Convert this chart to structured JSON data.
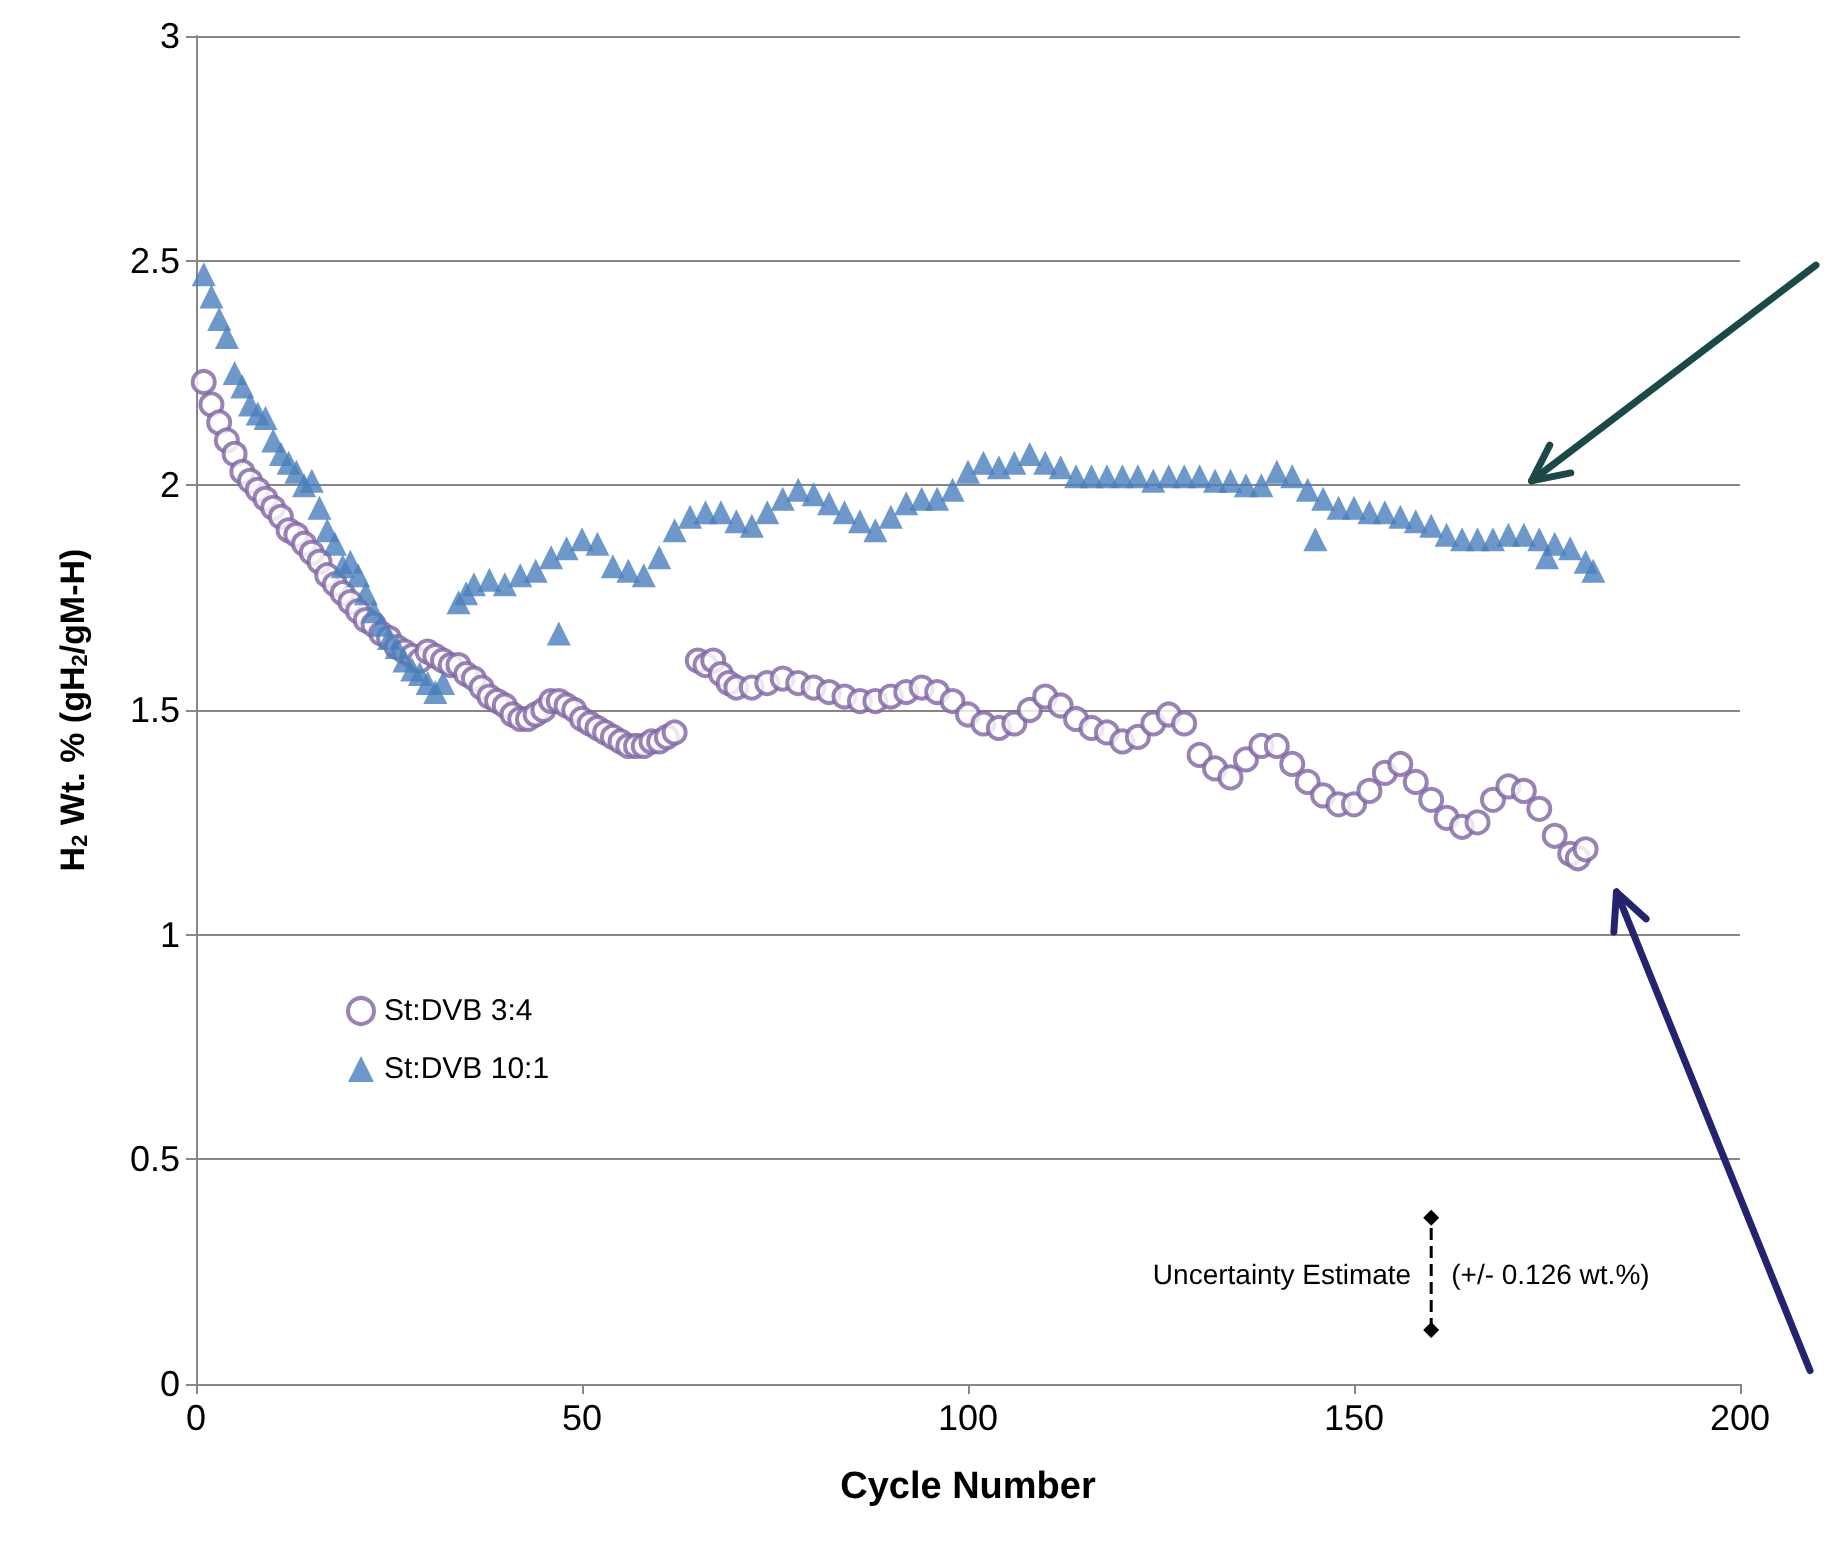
{
  "chart_data": {
    "type": "scatter",
    "xlabel": "Cycle Number",
    "ylabel": "H$_{2}$ Wt. % (gH$_{2}$/gM-H)",
    "xlim": [
      0,
      200
    ],
    "xticks": [
      0,
      50,
      100,
      150,
      200
    ],
    "ylim": [
      0,
      3
    ],
    "yticks": [
      0,
      0.5,
      1,
      1.5,
      2,
      2.5,
      3
    ],
    "grid": "y",
    "legend": "left",
    "annotations": [
      {
        "text": "Uncertainty Estimate",
        "x": 160,
        "y": 0.245
      },
      {
        "text": "(+/- 0.126 wt.%)",
        "x": 160,
        "y": 0.245
      }
    ],
    "series": [
      {
        "name": "St:DVB 3:4",
        "color": "#8064a2",
        "marker": "circle",
        "x": [
          1,
          2,
          3,
          4,
          5,
          6,
          7,
          8,
          9,
          10,
          11,
          12,
          13,
          14,
          15,
          16,
          17,
          18,
          19,
          20,
          21,
          22,
          23,
          24,
          25,
          26,
          27,
          28,
          29,
          30,
          31,
          32,
          33,
          34,
          35,
          36,
          37,
          38,
          39,
          40,
          41,
          42,
          43,
          44,
          45,
          46,
          47,
          48,
          49,
          50,
          51,
          52,
          53,
          54,
          55,
          56,
          57,
          58,
          59,
          60,
          61,
          62,
          65,
          66,
          67,
          68,
          69,
          70,
          72,
          74,
          76,
          78,
          80,
          82,
          84,
          86,
          88,
          90,
          92,
          94,
          96,
          98,
          100,
          102,
          104,
          106,
          108,
          110,
          112,
          114,
          116,
          118,
          120,
          122,
          124,
          126,
          128,
          130,
          132,
          134,
          136,
          138,
          140,
          142,
          144,
          146,
          148,
          150,
          152,
          154,
          156,
          158,
          160,
          162,
          164,
          166,
          168,
          170,
          172,
          174,
          176,
          178,
          179,
          180
        ],
        "values": [
          2.23,
          2.18,
          2.14,
          2.1,
          2.07,
          2.03,
          2.01,
          1.99,
          1.97,
          1.95,
          1.93,
          1.9,
          1.89,
          1.87,
          1.85,
          1.83,
          1.8,
          1.78,
          1.76,
          1.74,
          1.72,
          1.7,
          1.69,
          1.67,
          1.66,
          1.64,
          1.63,
          1.62,
          1.61,
          1.63,
          1.62,
          1.61,
          1.6,
          1.6,
          1.58,
          1.57,
          1.55,
          1.53,
          1.52,
          1.51,
          1.49,
          1.48,
          1.48,
          1.49,
          1.5,
          1.52,
          1.52,
          1.51,
          1.5,
          1.48,
          1.47,
          1.46,
          1.45,
          1.44,
          1.43,
          1.42,
          1.42,
          1.42,
          1.43,
          1.43,
          1.44,
          1.45,
          1.61,
          1.6,
          1.61,
          1.58,
          1.56,
          1.55,
          1.55,
          1.56,
          1.57,
          1.56,
          1.55,
          1.54,
          1.53,
          1.52,
          1.52,
          1.53,
          1.54,
          1.55,
          1.54,
          1.52,
          1.49,
          1.47,
          1.46,
          1.47,
          1.5,
          1.53,
          1.51,
          1.48,
          1.46,
          1.45,
          1.43,
          1.44,
          1.47,
          1.49,
          1.47,
          1.4,
          1.37,
          1.35,
          1.39,
          1.42,
          1.42,
          1.38,
          1.34,
          1.31,
          1.29,
          1.29,
          1.32,
          1.36,
          1.38,
          1.34,
          1.3,
          1.26,
          1.24,
          1.25,
          1.3,
          1.33,
          1.32,
          1.28,
          1.22,
          1.18,
          1.17,
          1.19
        ]
      },
      {
        "name": "St:DVB 10:1",
        "color": "#4a7ebb",
        "marker": "triangle",
        "x": [
          1,
          2,
          3,
          4,
          5,
          6,
          7,
          8,
          9,
          10,
          11,
          12,
          13,
          14,
          15,
          16,
          17,
          18,
          19,
          20,
          21,
          22,
          23,
          24,
          25,
          26,
          27,
          28,
          29,
          30,
          31,
          32,
          34,
          35,
          36,
          38,
          40,
          42,
          44,
          46,
          47,
          48,
          50,
          52,
          54,
          56,
          58,
          60,
          62,
          64,
          66,
          68,
          70,
          72,
          74,
          76,
          78,
          80,
          82,
          84,
          86,
          88,
          90,
          92,
          94,
          96,
          98,
          100,
          102,
          104,
          106,
          108,
          110,
          112,
          114,
          116,
          118,
          120,
          122,
          124,
          126,
          128,
          130,
          132,
          134,
          136,
          138,
          140,
          142,
          144,
          145,
          146,
          148,
          150,
          152,
          154,
          156,
          158,
          160,
          162,
          164,
          166,
          168,
          170,
          172,
          174,
          175,
          176,
          178,
          180,
          181
        ],
        "values": [
          2.47,
          2.42,
          2.37,
          2.33,
          2.25,
          2.22,
          2.18,
          2.16,
          2.15,
          2.1,
          2.07,
          2.05,
          2.03,
          2.0,
          2.01,
          1.95,
          1.9,
          1.87,
          1.82,
          1.83,
          1.8,
          1.76,
          1.72,
          1.69,
          1.66,
          1.64,
          1.61,
          1.59,
          1.58,
          1.56,
          1.54,
          1.56,
          1.74,
          1.76,
          1.78,
          1.79,
          1.78,
          1.8,
          1.81,
          1.84,
          1.67,
          1.86,
          1.88,
          1.87,
          1.82,
          1.81,
          1.8,
          1.84,
          1.9,
          1.93,
          1.94,
          1.94,
          1.92,
          1.91,
          1.94,
          1.97,
          1.99,
          1.98,
          1.96,
          1.94,
          1.92,
          1.9,
          1.93,
          1.96,
          1.97,
          1.97,
          1.99,
          2.03,
          2.05,
          2.04,
          2.05,
          2.07,
          2.05,
          2.04,
          2.02,
          2.02,
          2.02,
          2.02,
          2.02,
          2.01,
          2.02,
          2.02,
          2.02,
          2.01,
          2.01,
          2.0,
          2.0,
          2.03,
          2.02,
          1.99,
          1.88,
          1.97,
          1.95,
          1.95,
          1.94,
          1.94,
          1.93,
          1.92,
          1.91,
          1.89,
          1.88,
          1.88,
          1.88,
          1.89,
          1.89,
          1.88,
          1.84,
          1.87,
          1.86,
          1.83,
          1.81
        ]
      },
      {
        "type": "line",
        "color": "#000000",
        "marker": "diamond",
        "line_style": "dashed",
        "x": [
          160,
          160
        ],
        "values": [
          0.12,
          0.37
        ]
      }
    ]
  }
}
